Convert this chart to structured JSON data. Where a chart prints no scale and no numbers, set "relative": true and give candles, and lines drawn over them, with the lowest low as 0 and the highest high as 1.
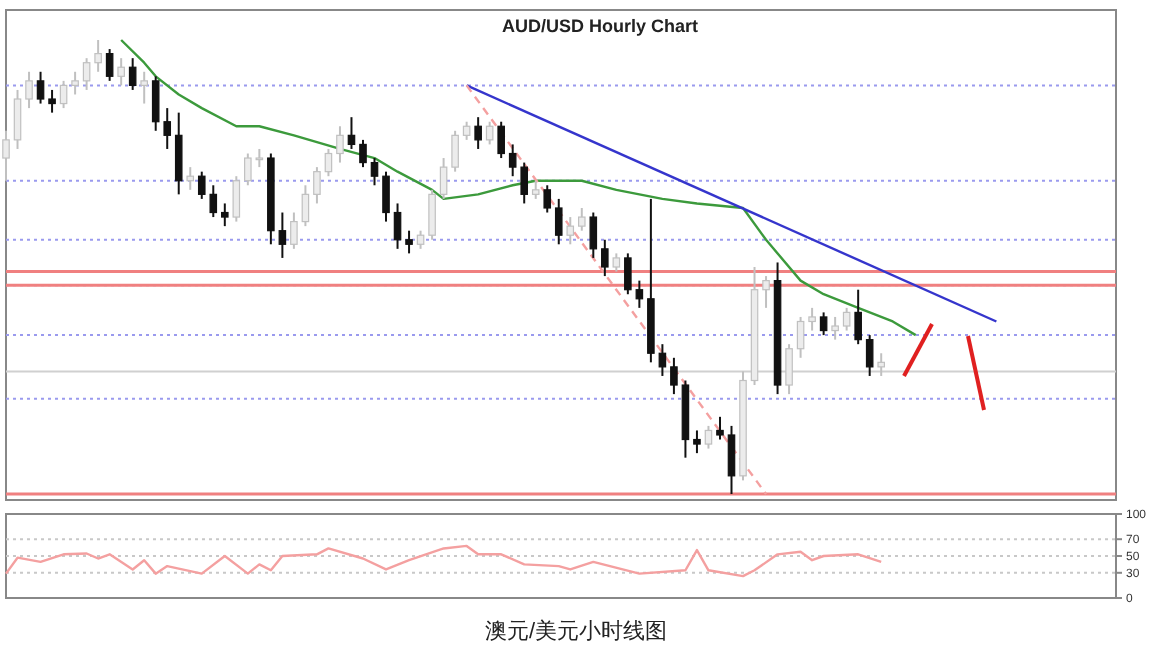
{
  "chart_data": [
    {
      "type": "candlestick",
      "title": "AUD/USD Hourly Chart",
      "relative": true,
      "categories": [
        null,
        null,
        null,
        null,
        null,
        null,
        null,
        null,
        null,
        null,
        null,
        null,
        null,
        null,
        null,
        null,
        null,
        null,
        null,
        null,
        null,
        null,
        null,
        null,
        null,
        null,
        null,
        null,
        null,
        null,
        null,
        null,
        null,
        null,
        null,
        null,
        null,
        null,
        null,
        null,
        null,
        null,
        null,
        null,
        null,
        null,
        null,
        null,
        null,
        null,
        null,
        null,
        null,
        null,
        null,
        null,
        null,
        null,
        null,
        null,
        null,
        null,
        null,
        null,
        null,
        null,
        null,
        null,
        null,
        null,
        null,
        null,
        null,
        null,
        null,
        null,
        null,
        null,
        null,
        null,
        null,
        null,
        null,
        null,
        null,
        null,
        null,
        null,
        null,
        null,
        null,
        null,
        null,
        null,
        null,
        null
      ],
      "ohlc": [
        [
          0.74,
          0.8,
          0.69,
          0.78
        ],
        [
          0.78,
          0.89,
          0.76,
          0.87
        ],
        [
          0.87,
          0.93,
          0.85,
          0.91
        ],
        [
          0.91,
          0.93,
          0.86,
          0.87
        ],
        [
          0.87,
          0.89,
          0.84,
          0.86
        ],
        [
          0.86,
          0.91,
          0.85,
          0.9
        ],
        [
          0.9,
          0.93,
          0.88,
          0.91
        ],
        [
          0.91,
          0.96,
          0.89,
          0.95
        ],
        [
          0.95,
          1.0,
          0.93,
          0.97
        ],
        [
          0.97,
          0.98,
          0.91,
          0.92
        ],
        [
          0.92,
          0.96,
          0.9,
          0.94
        ],
        [
          0.94,
          0.96,
          0.89,
          0.9
        ],
        [
          0.9,
          0.93,
          0.86,
          0.91
        ],
        [
          0.91,
          0.92,
          0.8,
          0.82
        ],
        [
          0.82,
          0.85,
          0.76,
          0.79
        ],
        [
          0.79,
          0.84,
          0.66,
          0.69
        ],
        [
          0.69,
          0.72,
          0.67,
          0.7
        ],
        [
          0.7,
          0.71,
          0.65,
          0.66
        ],
        [
          0.66,
          0.68,
          0.61,
          0.62
        ],
        [
          0.62,
          0.64,
          0.59,
          0.61
        ],
        [
          0.61,
          0.7,
          0.6,
          0.69
        ],
        [
          0.69,
          0.75,
          0.68,
          0.74
        ],
        [
          0.74,
          0.76,
          0.72,
          0.74
        ],
        [
          0.74,
          0.75,
          0.55,
          0.58
        ],
        [
          0.58,
          0.62,
          0.52,
          0.55
        ],
        [
          0.55,
          0.62,
          0.54,
          0.6
        ],
        [
          0.6,
          0.68,
          0.59,
          0.66
        ],
        [
          0.66,
          0.72,
          0.64,
          0.71
        ],
        [
          0.71,
          0.76,
          0.7,
          0.75
        ],
        [
          0.75,
          0.81,
          0.73,
          0.79
        ],
        [
          0.79,
          0.83,
          0.76,
          0.77
        ],
        [
          0.77,
          0.78,
          0.72,
          0.73
        ],
        [
          0.73,
          0.74,
          0.68,
          0.7
        ],
        [
          0.7,
          0.71,
          0.6,
          0.62
        ],
        [
          0.62,
          0.64,
          0.54,
          0.56
        ],
        [
          0.56,
          0.58,
          0.53,
          0.55
        ],
        [
          0.55,
          0.58,
          0.54,
          0.57
        ],
        [
          0.57,
          0.67,
          0.56,
          0.66
        ],
        [
          0.66,
          0.74,
          0.65,
          0.72
        ],
        [
          0.72,
          0.8,
          0.71,
          0.79
        ],
        [
          0.79,
          0.82,
          0.78,
          0.81
        ],
        [
          0.81,
          0.83,
          0.76,
          0.78
        ],
        [
          0.78,
          0.82,
          0.77,
          0.81
        ],
        [
          0.81,
          0.82,
          0.74,
          0.75
        ],
        [
          0.75,
          0.77,
          0.7,
          0.72
        ],
        [
          0.72,
          0.73,
          0.64,
          0.66
        ],
        [
          0.66,
          0.69,
          0.65,
          0.67
        ],
        [
          0.67,
          0.68,
          0.62,
          0.63
        ],
        [
          0.63,
          0.65,
          0.55,
          0.57
        ],
        [
          0.57,
          0.61,
          0.55,
          0.59
        ],
        [
          0.59,
          0.63,
          0.58,
          0.61
        ],
        [
          0.61,
          0.62,
          0.52,
          0.54
        ],
        [
          0.54,
          0.56,
          0.48,
          0.5
        ],
        [
          0.5,
          0.53,
          0.49,
          0.52
        ],
        [
          0.52,
          0.53,
          0.44,
          0.45
        ],
        [
          0.45,
          0.47,
          0.41,
          0.43
        ],
        [
          0.43,
          0.65,
          0.29,
          0.31
        ],
        [
          0.31,
          0.33,
          0.26,
          0.28
        ],
        [
          0.28,
          0.3,
          0.22,
          0.24
        ],
        [
          0.24,
          0.25,
          0.08,
          0.12
        ],
        [
          0.12,
          0.14,
          0.09,
          0.11
        ],
        [
          0.11,
          0.15,
          0.1,
          0.14
        ],
        [
          0.14,
          0.17,
          0.12,
          0.13
        ],
        [
          0.13,
          0.15,
          0.0,
          0.04
        ],
        [
          0.04,
          0.27,
          0.03,
          0.25
        ],
        [
          0.25,
          0.5,
          0.24,
          0.45
        ],
        [
          0.45,
          0.48,
          0.41,
          0.47
        ],
        [
          0.47,
          0.51,
          0.22,
          0.24
        ],
        [
          0.24,
          0.33,
          0.22,
          0.32
        ],
        [
          0.32,
          0.39,
          0.3,
          0.38
        ],
        [
          0.38,
          0.41,
          0.36,
          0.39
        ],
        [
          0.39,
          0.4,
          0.35,
          0.36
        ],
        [
          0.36,
          0.39,
          0.34,
          0.37
        ],
        [
          0.37,
          0.41,
          0.36,
          0.4
        ],
        [
          0.4,
          0.45,
          0.33,
          0.34
        ],
        [
          0.34,
          0.35,
          0.26,
          0.28
        ],
        [
          0.28,
          0.31,
          0.26,
          0.29
        ],
        null,
        null,
        null,
        null,
        null,
        null,
        null,
        null,
        null,
        null,
        null,
        null,
        null,
        null,
        null,
        null,
        null,
        null,
        null
      ],
      "series": [
        {
          "type": "line",
          "color": "#3c9a3c",
          "values": [
            null,
            null,
            null,
            null,
            null,
            null,
            null,
            null,
            null,
            null,
            1.0,
            null,
            0.95,
            0.92,
            null,
            0.88,
            null,
            0.85,
            null,
            null,
            0.81,
            null,
            0.81,
            null,
            null,
            0.79,
            null,
            null,
            null,
            0.76,
            null,
            null,
            0.74,
            null,
            0.71,
            null,
            null,
            0.67,
            0.65,
            null,
            null,
            0.66,
            null,
            null,
            0.68,
            null,
            0.69,
            null,
            null,
            null,
            0.69,
            null,
            null,
            0.67,
            null,
            null,
            null,
            0.65,
            null,
            null,
            0.64,
            null,
            null,
            null,
            0.63,
            null,
            0.56,
            null,
            null,
            0.47,
            null,
            0.44,
            null,
            null,
            0.41,
            null,
            null,
            0.38,
            null,
            0.35,
            null,
            null,
            null,
            null,
            null,
            null,
            null,
            null,
            null,
            null,
            null,
            null,
            null,
            null,
            null,
            null
          ]
        },
        {
          "type": "line",
          "color": "#3535cc",
          "values": [
            null,
            null,
            null,
            null,
            null,
            null,
            null,
            null,
            null,
            null,
            null,
            null,
            null,
            null,
            null,
            null,
            null,
            null,
            null,
            null,
            null,
            null,
            null,
            null,
            null,
            null,
            null,
            null,
            null,
            null,
            null,
            null,
            null,
            null,
            null,
            null,
            null,
            null,
            null,
            null,
            0.9,
            null,
            null,
            null,
            null,
            null,
            null,
            null,
            null,
            null,
            null,
            null,
            null,
            null,
            null,
            null,
            null,
            null,
            null,
            null,
            null,
            null,
            null,
            null,
            null,
            null,
            null,
            null,
            null,
            null,
            null,
            null,
            null,
            null,
            null,
            null,
            null,
            null,
            null,
            null,
            null,
            null,
            null,
            null,
            null,
            null,
            0.38,
            null,
            null,
            null,
            null,
            null,
            null,
            null,
            null,
            null
          ]
        },
        {
          "type": "line",
          "color": "#f4a0a0",
          "line_style": "dashed",
          "values": [
            null,
            null,
            null,
            null,
            null,
            null,
            null,
            null,
            null,
            null,
            null,
            null,
            null,
            null,
            null,
            null,
            null,
            null,
            null,
            null,
            null,
            null,
            null,
            null,
            null,
            null,
            null,
            null,
            null,
            null,
            null,
            null,
            null,
            null,
            null,
            null,
            null,
            null,
            null,
            null,
            0.9,
            null,
            null,
            null,
            null,
            null,
            null,
            null,
            null,
            null,
            null,
            null,
            null,
            null,
            null,
            null,
            null,
            null,
            null,
            null,
            null,
            null,
            null,
            null,
            null,
            null,
            0.0,
            null,
            null,
            null,
            null,
            null,
            null,
            null,
            null,
            null,
            null,
            null,
            null,
            null,
            null,
            null,
            null,
            null,
            null,
            null,
            null,
            null,
            null,
            null,
            null,
            null,
            null,
            null,
            null,
            null
          ]
        }
      ],
      "ref_lines": [
        {
          "axis": "y",
          "value": 0.9,
          "color": "#9a9aee",
          "line_style": "dotted"
        },
        {
          "axis": "y",
          "value": 0.69,
          "color": "#9a9aee",
          "line_style": "dotted"
        },
        {
          "axis": "y",
          "value": 0.56,
          "color": "#9a9aee",
          "line_style": "dotted"
        },
        {
          "axis": "y",
          "value": 0.46,
          "color": "#9a9aee",
          "line_style": "dotted"
        },
        {
          "axis": "y",
          "value": 0.35,
          "color": "#9a9aee",
          "line_style": "dotted"
        },
        {
          "axis": "y",
          "value": 0.21,
          "color": "#9a9aee",
          "line_style": "dotted"
        },
        {
          "axis": "y",
          "value": 0.27,
          "color": "#d0d0d0",
          "line_style": "solid"
        },
        {
          "axis": "y",
          "value": 0.49,
          "color": "#f08080",
          "line_style": "solid"
        },
        {
          "axis": "y",
          "value": 0.46,
          "color": "#f08080",
          "line_style": "solid"
        },
        {
          "axis": "y",
          "value": 0.0,
          "color": "#f08080",
          "line_style": "solid"
        }
      ],
      "annotations": [
        "澳元/美元小时线图"
      ]
    },
    {
      "type": "line",
      "ylim": [
        0,
        100
      ],
      "yticks": [
        0,
        30,
        50,
        70,
        100
      ],
      "categories": [
        null,
        null,
        null,
        null,
        null,
        null,
        null,
        null,
        null,
        null,
        null,
        null,
        null,
        null,
        null,
        null,
        null,
        null,
        null,
        null,
        null,
        null,
        null,
        null,
        null,
        null,
        null,
        null,
        null,
        null,
        null,
        null,
        null,
        null,
        null,
        null,
        null,
        null,
        null,
        null,
        null,
        null,
        null,
        null,
        null,
        null,
        null,
        null,
        null,
        null,
        null,
        null,
        null,
        null,
        null,
        null,
        null,
        null,
        null,
        null,
        null,
        null,
        null,
        null,
        null,
        null,
        null,
        null,
        null,
        null,
        null,
        null,
        null,
        null,
        null,
        null,
        null,
        null,
        null,
        null,
        null,
        null,
        null,
        null,
        null,
        null,
        null,
        null,
        null,
        null,
        null,
        null,
        null,
        null,
        null,
        null
      ],
      "series": [
        {
          "color": "#f4a0a0",
          "values": [
            29,
            48,
            null,
            43,
            null,
            52,
            null,
            53,
            47,
            52,
            null,
            34,
            45,
            29,
            38,
            null,
            null,
            29,
            null,
            50,
            null,
            29,
            40,
            33,
            50,
            null,
            null,
            52,
            59,
            null,
            null,
            47,
            null,
            34,
            null,
            45,
            null,
            null,
            59,
            null,
            62,
            52,
            null,
            52,
            null,
            40,
            null,
            null,
            38,
            34,
            null,
            43,
            null,
            null,
            null,
            29,
            null,
            null,
            null,
            33,
            57,
            33,
            null,
            null,
            26,
            33,
            null,
            52,
            null,
            55,
            45,
            50,
            null,
            null,
            52,
            null,
            43,
            null,
            null,
            null,
            null,
            null,
            null,
            null,
            null,
            null,
            null,
            null,
            null,
            null,
            null,
            null,
            null,
            null,
            null,
            null
          ]
        }
      ],
      "ref_lines": [
        {
          "axis": "y",
          "value": 30,
          "color": "#c8c8c8",
          "line_style": "dotted"
        },
        {
          "axis": "y",
          "value": 50,
          "color": "#c8c8c8",
          "line_style": "dotted"
        },
        {
          "axis": "y",
          "value": 70,
          "color": "#c8c8c8",
          "line_style": "dotted"
        }
      ]
    }
  ]
}
